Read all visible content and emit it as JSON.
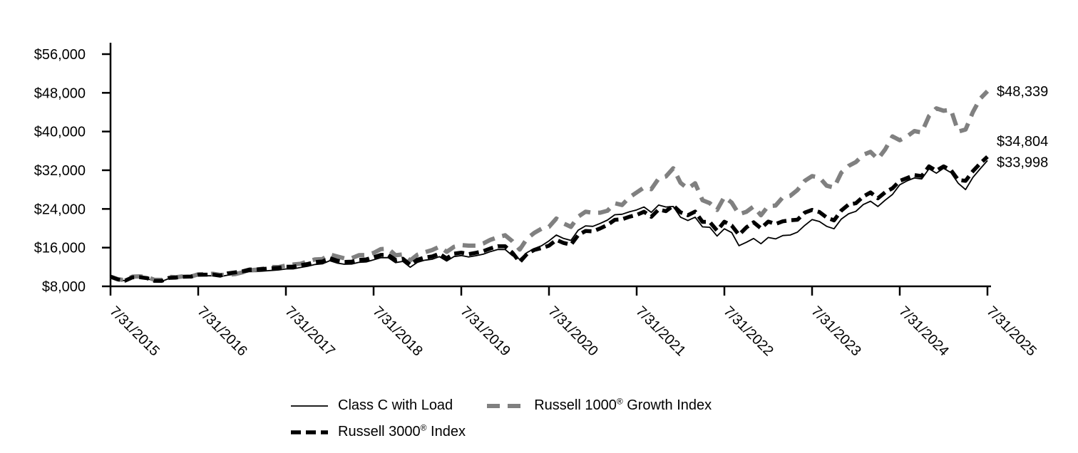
{
  "chart_data": {
    "type": "line",
    "title": "",
    "xlabel": "",
    "ylabel": "",
    "ylim": [
      8000,
      56000
    ],
    "y_tick_step": 8000,
    "y_tick_labels": [
      "$8,000",
      "$16,000",
      "$24,000",
      "$32,000",
      "$40,000",
      "$48,000",
      "$56,000"
    ],
    "x_tick_labels": [
      "7/31/2015",
      "7/31/2016",
      "7/31/2017",
      "7/31/2018",
      "7/31/2019",
      "7/31/2020",
      "7/31/2021",
      "7/31/2022",
      "7/31/2023",
      "7/31/2024",
      "7/31/2025"
    ],
    "grid": false,
    "legend_position": "bottom",
    "legend_rows": [
      [
        0,
        1
      ],
      [
        2
      ]
    ],
    "series": [
      {
        "name": "Class C with Load",
        "color": "#000000",
        "line_width": 1.8,
        "dash": "",
        "end_label": "$33,998",
        "end_label_dy": 2,
        "values": [
          10000,
          9400,
          9150,
          9800,
          9820,
          9620,
          9050,
          9020,
          9620,
          9680,
          9850,
          9820,
          10150,
          10180,
          10200,
          10000,
          10300,
          10500,
          10700,
          11050,
          11060,
          11170,
          11280,
          11390,
          11600,
          11610,
          11900,
          12160,
          12520,
          12650,
          13300,
          12820,
          12560,
          12610,
          12960,
          13050,
          13480,
          13920,
          13940,
          12910,
          13160,
          11940,
          12960,
          13400,
          13600,
          14140,
          13230,
          14150,
          14360,
          14070,
          14330,
          14640,
          15190,
          15630,
          15610,
          14330,
          13600,
          15000,
          15800,
          16400,
          17400,
          18600,
          17900,
          17500,
          19600,
          20500,
          20400,
          21000,
          21700,
          22800,
          22900,
          23400,
          23800,
          24400,
          23300,
          24800,
          24400,
          24500,
          22300,
          21600,
          22300,
          20300,
          20200,
          18400,
          19900,
          19100,
          16400,
          17100,
          17900,
          16800,
          18100,
          17800,
          18500,
          18600,
          19200,
          20600,
          21800,
          21400,
          20400,
          19900,
          21900,
          23000,
          23500,
          24900,
          25600,
          24500,
          25800,
          27000,
          29000,
          29800,
          30400,
          30200,
          32300,
          31400,
          32400,
          31500,
          29300,
          28000,
          30500,
          32300,
          33998
        ]
      },
      {
        "name": "Russell 1000® Growth Index",
        "color": "#808080",
        "line_width": 6,
        "dash": "18 11",
        "end_label": "$48,339",
        "end_label_dy": 0,
        "values": [
          10000,
          9470,
          9260,
          10000,
          10060,
          9920,
          9350,
          9330,
          9960,
          9900,
          10080,
          10020,
          10490,
          10550,
          10590,
          10350,
          10390,
          10520,
          10870,
          11310,
          11440,
          11700,
          12010,
          11970,
          12290,
          12510,
          12670,
          13160,
          13560,
          13640,
          14590,
          14190,
          13790,
          13830,
          14440,
          14480,
          14910,
          15700,
          15790,
          14420,
          14590,
          13340,
          14540,
          15060,
          15490,
          16190,
          15130,
          16170,
          16530,
          16400,
          16400,
          16860,
          17630,
          18150,
          18560,
          17310,
          15600,
          17900,
          19060,
          19920,
          20300,
          22000,
          21000,
          20300,
          22400,
          23430,
          23200,
          23230,
          23620,
          25180,
          24810,
          26390,
          27400,
          28420,
          28080,
          30280,
          30700,
          32400,
          29400,
          28200,
          29300,
          25800,
          25200,
          23800,
          26500,
          25300,
          22900,
          23400,
          24500,
          22700,
          24600,
          24700,
          26400,
          26700,
          27900,
          29800,
          30800,
          30500,
          28800,
          28400,
          31500,
          32900,
          33700,
          35200,
          35800,
          34300,
          36300,
          39000,
          38200,
          39000,
          40100,
          39800,
          43200,
          44800,
          44300,
          44500,
          40000,
          40400,
          44000,
          46800,
          48339
        ]
      },
      {
        "name": "Russell 3000® Index",
        "color": "#000000",
        "line_width": 5.5,
        "dash": "14 7",
        "end_label": "$34,804",
        "end_label_dy": -22,
        "values": [
          10000,
          9430,
          9180,
          9850,
          9880,
          9690,
          9140,
          9120,
          9750,
          9810,
          9990,
          10010,
          10380,
          10410,
          10430,
          10210,
          10660,
          10870,
          11070,
          11480,
          11490,
          11600,
          11720,
          11830,
          12050,
          12070,
          12360,
          12630,
          13010,
          13140,
          13830,
          13320,
          13050,
          13100,
          13470,
          13560,
          14010,
          14500,
          14520,
          13450,
          13720,
          12440,
          13510,
          13970,
          14170,
          14740,
          13790,
          14750,
          14970,
          14660,
          14930,
          15260,
          15840,
          16290,
          16280,
          14940,
          13000,
          14730,
          15540,
          15900,
          16400,
          17600,
          16970,
          16600,
          18600,
          19440,
          19360,
          19970,
          20690,
          21750,
          21850,
          22390,
          22770,
          23420,
          22370,
          23890,
          23530,
          24700,
          23300,
          22700,
          23440,
          21330,
          21310,
          19520,
          21350,
          20560,
          18650,
          20180,
          21230,
          19980,
          21380,
          20880,
          21440,
          21670,
          21760,
          23240,
          23800,
          23350,
          22230,
          21640,
          23660,
          24920,
          25190,
          26550,
          27400,
          26200,
          27430,
          28280,
          29800,
          30400,
          31000,
          30800,
          32800,
          31900,
          32800,
          32000,
          30000,
          29800,
          31800,
          33400,
          34804
        ]
      }
    ]
  }
}
